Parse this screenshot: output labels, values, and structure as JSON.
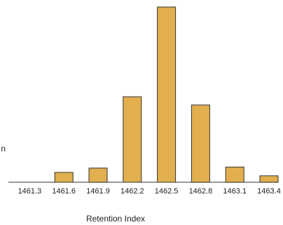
{
  "chart_data": {
    "type": "bar",
    "title": "",
    "xlabel": "Retention Index",
    "ylabel": "",
    "categories": [
      "1461.3",
      "1461.6",
      "1461.9",
      "1462.2",
      "1462.5",
      "1462.8",
      "1463.1",
      "1463.4"
    ],
    "values": [
      0,
      5.6,
      8.1,
      48.8,
      100,
      44.1,
      8.7,
      3.7
    ],
    "ylim": [
      0,
      100
    ],
    "grid": false,
    "legend": "none",
    "colors": {
      "bar_fill": "#E2AF4E",
      "bar_stroke": "#333333",
      "axis": "#333333",
      "text": "#222222"
    },
    "edge_glyph": "n"
  }
}
